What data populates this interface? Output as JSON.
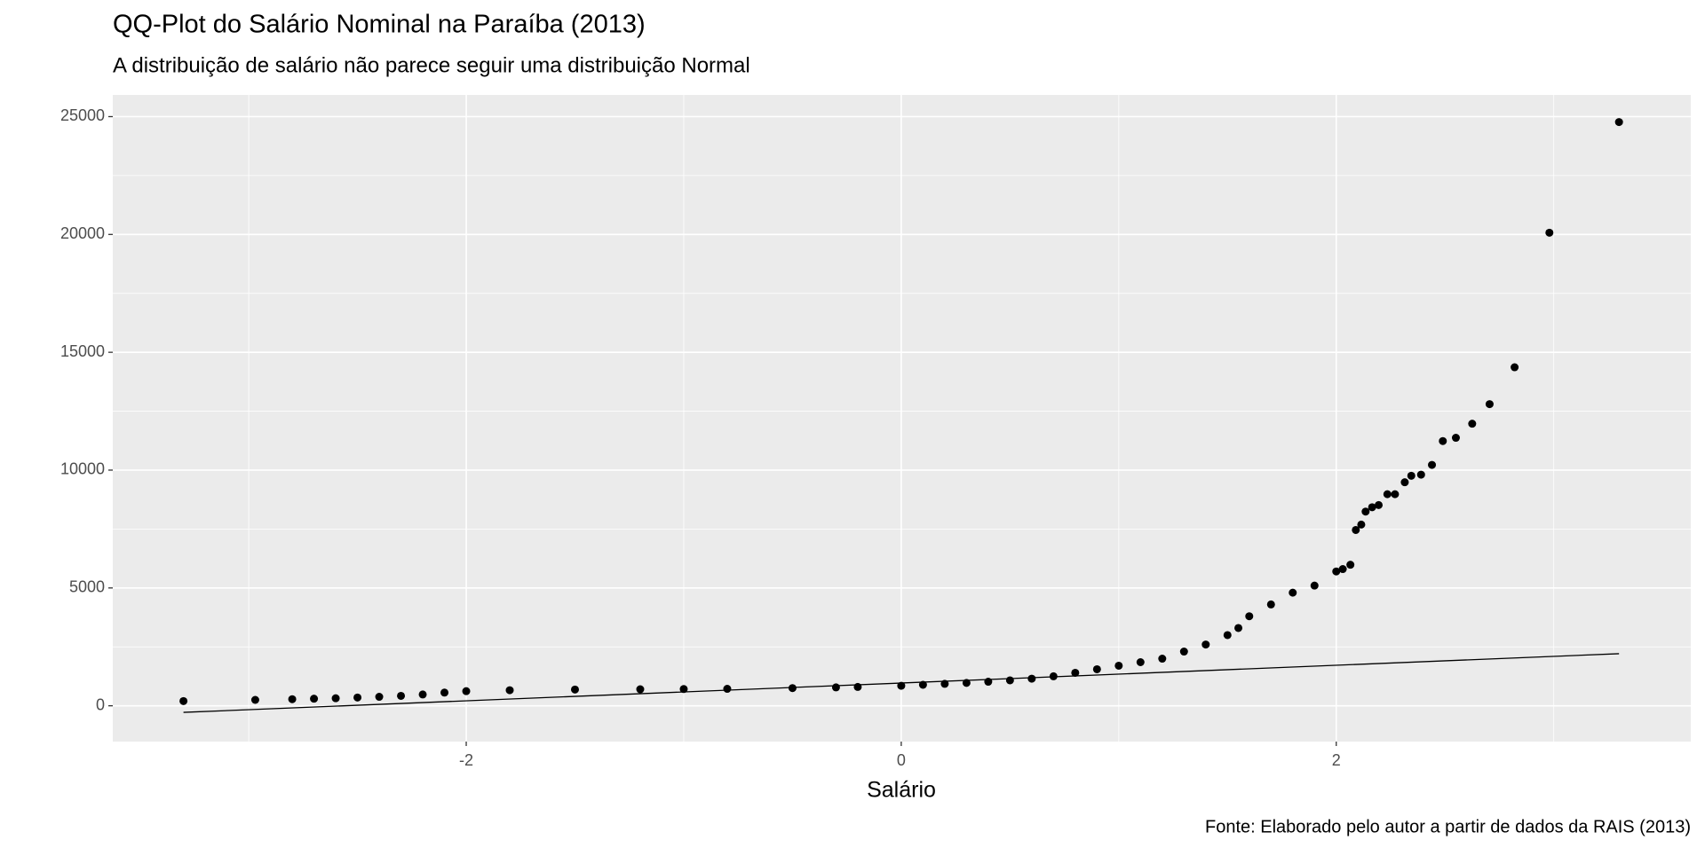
{
  "chart_data": {
    "type": "scatter",
    "title": "QQ-Plot do Salário Nominal na Paraíba (2013)",
    "subtitle": "A distribuição de salário não parece seguir uma distribuição Normal",
    "x_label": "Salário",
    "caption": "Fonte: Elaborado pelo autor a partir de dados da RAIS (2013)",
    "color": "#000000",
    "grid": true,
    "x": [
      -3.3,
      -2.97,
      -2.8,
      -2.7,
      -2.6,
      -2.5,
      -2.4,
      -2.3,
      -2.2,
      -2.1,
      -2.0,
      -1.8,
      -1.5,
      -1.2,
      -1.0,
      -0.8,
      -0.5,
      -0.3,
      -0.2,
      0.0,
      0.1,
      0.2,
      0.3,
      0.4,
      0.5,
      0.6,
      0.7,
      0.8,
      0.9,
      1.0,
      1.1,
      1.2,
      1.3,
      1.4,
      1.5,
      1.55,
      1.6,
      1.7,
      1.8,
      1.9,
      2.0,
      2.03,
      2.065,
      2.09,
      2.115,
      2.135,
      2.165,
      2.195,
      2.235,
      2.27,
      2.315,
      2.345,
      2.39,
      2.44,
      2.49,
      2.55,
      2.625,
      2.705,
      2.82,
      2.98,
      3.3
    ],
    "y": [
      200,
      250,
      280,
      300,
      320,
      350,
      380,
      420,
      480,
      560,
      620,
      660,
      690,
      700,
      710,
      720,
      750,
      780,
      800,
      850,
      890,
      930,
      970,
      1020,
      1080,
      1150,
      1250,
      1400,
      1550,
      1700,
      1850,
      2000,
      2300,
      2600,
      3000,
      3300,
      3800,
      4300,
      4800,
      5100,
      5700,
      5800,
      5985,
      7459,
      7689,
      8241,
      8425,
      8517,
      8978,
      8978,
      9484,
      9760,
      9807,
      10221,
      11234,
      11372,
      11970,
      12800,
      14365,
      20073,
      24770
    ],
    "qq_line": {
      "x": [
        -3.3,
        3.3
      ],
      "y": [
        -280,
        2210
      ]
    },
    "xlim": [
      -3.625,
      3.63
    ],
    "ylim": [
      -1519,
      25921
    ],
    "xticks": [
      -2,
      0,
      2
    ],
    "yticks": [
      0,
      5000,
      10000,
      15000,
      20000,
      25000
    ]
  }
}
